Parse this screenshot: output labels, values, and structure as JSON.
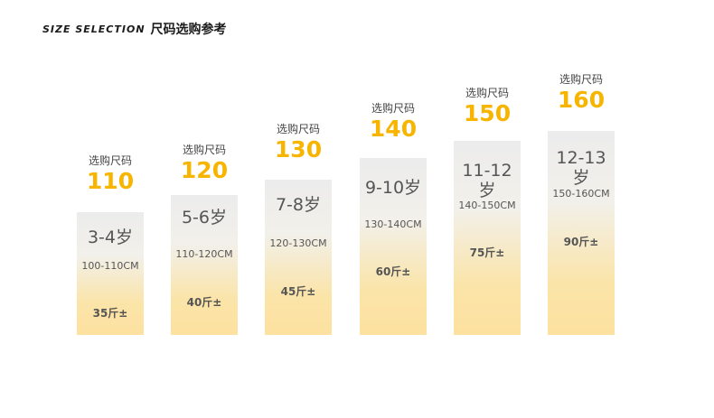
{
  "header": {
    "title_en": "SIZE SELECTION",
    "title_zh": "尺码选购参考"
  },
  "columns": [
    {
      "pick_label": "选购尺码",
      "size": "110",
      "age": "3-4岁",
      "height": "100-110CM",
      "weight": "35斤±"
    },
    {
      "pick_label": "选购尺码",
      "size": "120",
      "age": "5-6岁",
      "height": "110-120CM",
      "weight": "40斤±"
    },
    {
      "pick_label": "选购尺码",
      "size": "130",
      "age": "7-8岁",
      "height": "120-130CM",
      "weight": "45斤±"
    },
    {
      "pick_label": "选购尺码",
      "size": "140",
      "age": "9-10岁",
      "height": "130-140CM",
      "weight": "60斤±"
    },
    {
      "pick_label": "选购尺码",
      "size": "150",
      "age": "11-12岁",
      "height": "140-150CM",
      "weight": "75斤±"
    },
    {
      "pick_label": "选购尺码",
      "size": "160",
      "age": "12-13岁",
      "height": "150-160CM",
      "weight": "90斤±"
    }
  ],
  "colors": {
    "accent": "#f7b500",
    "bar_top": "#ececec",
    "bar_bottom": "#fde1a0",
    "text": "#555555"
  }
}
